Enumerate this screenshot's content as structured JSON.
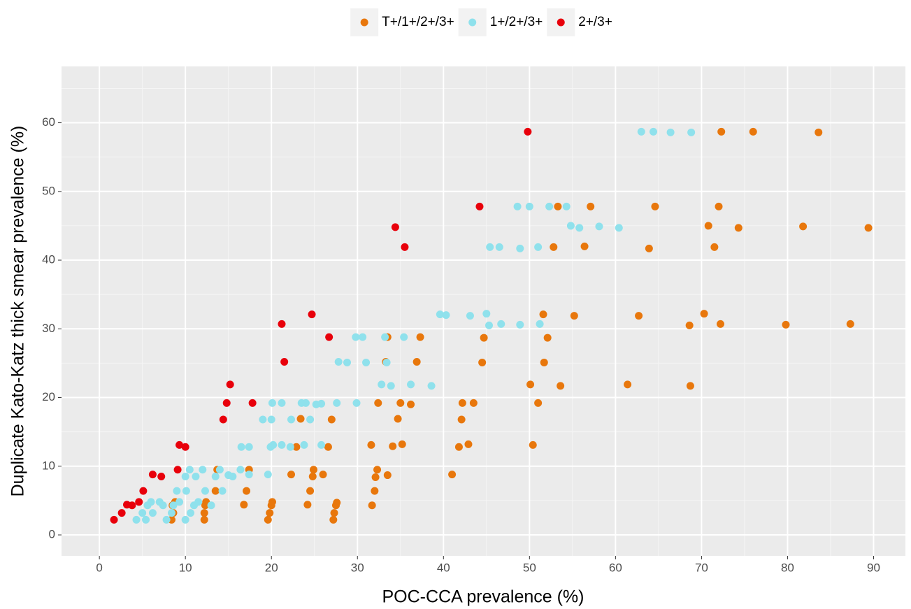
{
  "chart_data": {
    "type": "scatter",
    "x_label": "POC-CCA prevalence (%)",
    "y_label": "Duplicate Kato-Katz thick smear prevalence (%)",
    "xlim": [
      -4.4,
      93.7
    ],
    "ylim": [
      -3.05,
      68.2
    ],
    "xticks": [
      0,
      10,
      20,
      30,
      40,
      50,
      60,
      70,
      80,
      90
    ],
    "yticks": [
      0,
      10,
      20,
      30,
      40,
      50,
      60
    ],
    "grid": true,
    "legend": "top",
    "series": [
      {
        "name": "T+/1+/2+/3+",
        "color": "#E8770C",
        "x": [
          8.4,
          8.6,
          8.8,
          8.5,
          12.2,
          12.2,
          12.3,
          12.4,
          13.5,
          13.7,
          16.8,
          17.1,
          17.4,
          19.6,
          19.8,
          20.0,
          20.1,
          22.3,
          22.9,
          23.4,
          24.2,
          24.5,
          24.8,
          24.9,
          26.0,
          26.6,
          27.0,
          27.2,
          27.3,
          27.5,
          27.6,
          31.6,
          31.7,
          32.0,
          32.1,
          32.3,
          32.4,
          33.3,
          33.5,
          33.5,
          34.1,
          34.7,
          35.0,
          35.2,
          36.2,
          36.9,
          37.3,
          41.0,
          41.8,
          42.1,
          42.2,
          42.9,
          43.5,
          44.5,
          44.7,
          50.1,
          50.4,
          51.0,
          51.6,
          51.7,
          52.1,
          52.8,
          53.3,
          53.6,
          55.2,
          56.4,
          57.1,
          61.4,
          62.7,
          63.9,
          64.6,
          68.6,
          68.7,
          70.3,
          70.8,
          71.5,
          72.0,
          72.2,
          72.3,
          74.3,
          76.0,
          79.8,
          81.8,
          83.6,
          87.3,
          89.4
        ],
        "values": [
          2.2,
          3.2,
          4.8,
          4.3,
          2.2,
          3.2,
          4.3,
          4.8,
          6.4,
          9.5,
          4.4,
          6.4,
          9.5,
          2.2,
          3.2,
          4.3,
          4.8,
          8.8,
          12.8,
          16.9,
          4.4,
          6.4,
          8.5,
          9.5,
          8.8,
          12.8,
          16.8,
          2.2,
          3.2,
          4.3,
          4.7,
          13.1,
          4.3,
          6.4,
          8.4,
          9.5,
          19.2,
          25.2,
          28.8,
          8.7,
          12.9,
          16.9,
          19.2,
          13.2,
          19.0,
          25.2,
          28.8,
          8.8,
          12.8,
          16.8,
          19.2,
          13.2,
          19.2,
          25.1,
          28.7,
          21.9,
          13.1,
          19.2,
          32.1,
          25.1,
          28.7,
          41.9,
          47.8,
          21.7,
          31.9,
          42.0,
          47.8,
          21.9,
          31.9,
          41.7,
          47.8,
          30.5,
          21.7,
          32.2,
          45.0,
          41.9,
          47.8,
          30.7,
          58.7,
          44.7,
          58.7,
          30.6,
          44.9,
          58.6,
          30.7,
          44.7
        ]
      },
      {
        "name": "1+/2+/3+",
        "color": "#8FE1EC",
        "x": [
          4.3,
          5.0,
          5.4,
          5.6,
          6.0,
          6.2,
          7.0,
          7.4,
          7.8,
          8.4,
          8.6,
          9.0,
          9.3,
          10.0,
          10.0,
          10.1,
          10.5,
          10.6,
          11.0,
          11.2,
          11.5,
          12.0,
          12.3,
          13.0,
          13.5,
          14.0,
          14.3,
          15.0,
          15.5,
          16.4,
          16.5,
          17.4,
          17.4,
          19.0,
          19.6,
          19.9,
          20.0,
          20.1,
          20.2,
          21.2,
          21.2,
          22.2,
          22.3,
          23.5,
          23.8,
          24.0,
          24.5,
          25.2,
          25.8,
          25.8,
          27.6,
          27.8,
          28.8,
          29.8,
          29.9,
          30.6,
          31.0,
          32.8,
          33.2,
          33.4,
          33.9,
          35.4,
          36.2,
          38.6,
          39.6,
          40.3,
          43.1,
          45.0,
          45.3,
          45.4,
          46.5,
          46.7,
          48.6,
          48.9,
          48.9,
          50.0,
          51.0,
          51.2,
          52.3,
          54.3,
          54.8,
          55.8,
          58.1,
          60.4,
          63.0,
          64.4,
          66.4,
          68.8
        ],
        "values": [
          2.2,
          3.2,
          2.2,
          4.3,
          4.8,
          3.2,
          4.8,
          4.3,
          2.2,
          3.2,
          4.3,
          6.4,
          4.8,
          8.5,
          2.2,
          6.4,
          9.5,
          3.2,
          4.3,
          8.5,
          4.8,
          9.5,
          6.4,
          4.3,
          8.5,
          9.5,
          6.4,
          8.7,
          8.5,
          9.5,
          12.8,
          12.8,
          8.8,
          16.8,
          8.8,
          12.8,
          16.8,
          19.2,
          13.1,
          13.1,
          19.2,
          12.8,
          16.8,
          19.2,
          13.1,
          19.2,
          16.8,
          19.0,
          19.1,
          13.1,
          19.2,
          25.2,
          25.1,
          28.8,
          19.2,
          28.8,
          25.1,
          21.9,
          28.8,
          25.1,
          21.7,
          28.8,
          21.9,
          21.7,
          32.1,
          32.0,
          31.9,
          32.2,
          30.5,
          41.9,
          41.9,
          30.7,
          47.8,
          30.6,
          41.7,
          47.8,
          41.9,
          30.7,
          47.8,
          47.8,
          45.0,
          44.7,
          44.9,
          44.7,
          58.7,
          58.7,
          58.6,
          58.6
        ]
      },
      {
        "name": "2+/3+",
        "color": "#E8000B",
        "x": [
          1.7,
          2.6,
          3.2,
          3.8,
          4.6,
          5.1,
          6.2,
          7.2,
          9.1,
          9.3,
          10.0,
          14.4,
          14.8,
          15.2,
          17.8,
          21.2,
          21.5,
          24.7,
          26.7,
          34.4,
          35.5,
          44.2,
          49.8
        ],
        "values": [
          2.2,
          3.2,
          4.4,
          4.3,
          4.8,
          6.4,
          8.8,
          8.5,
          9.5,
          13.1,
          12.8,
          16.8,
          19.2,
          21.9,
          19.2,
          30.7,
          25.2,
          32.1,
          28.8,
          44.8,
          41.9,
          47.8,
          58.7
        ]
      }
    ]
  }
}
